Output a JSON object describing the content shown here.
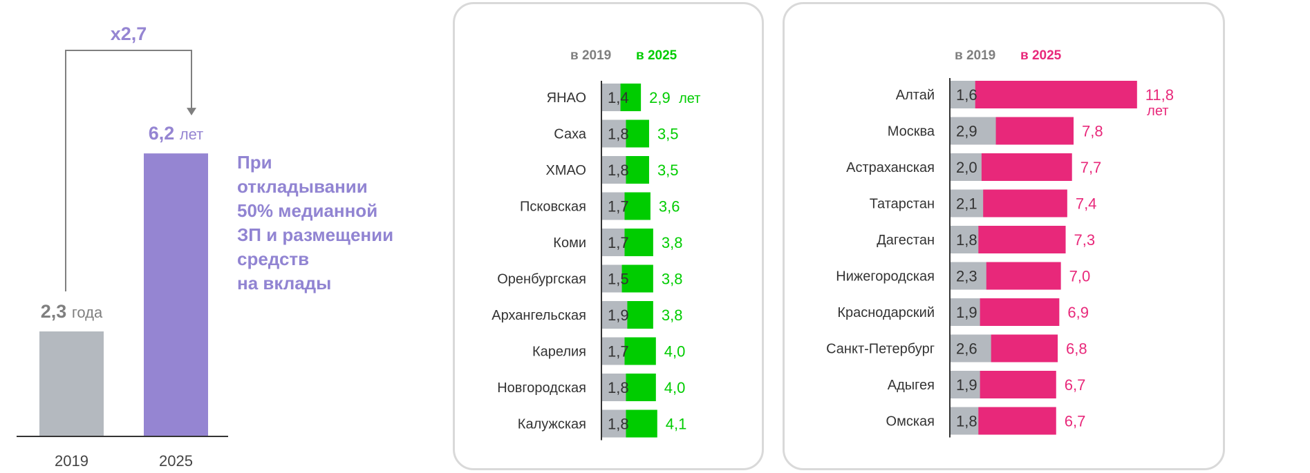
{
  "chart_data": [
    {
      "type": "bar",
      "title": "",
      "categories": [
        "2019",
        "2025"
      ],
      "values": [
        2.3,
        6.2
      ],
      "value_labels": [
        {
          "number": "2,3",
          "unit": "года"
        },
        {
          "number": "6,2",
          "unit": "лет"
        }
      ],
      "multiplier_label": "x2,7",
      "colors": {
        "2019": "#b4b9bf",
        "2025": "#9585d2"
      },
      "note_lines": [
        "При",
        "откладывании",
        "50% медианной",
        "ЗП и размещении",
        "средств",
        "на вклады"
      ]
    },
    {
      "type": "bar",
      "orientation": "horizontal",
      "legend": [
        {
          "label": "в 2019",
          "color": "#7f7f7f"
        },
        {
          "label": "в 2025",
          "color": "#00cc00"
        }
      ],
      "unit_label": "лет",
      "rows": [
        {
          "region": "ЯНАО",
          "v2019": 1.4,
          "v2025": 2.9,
          "l2019": "1,4",
          "l2025": "2,9"
        },
        {
          "region": "Саха",
          "v2019": 1.8,
          "v2025": 3.5,
          "l2019": "1,8",
          "l2025": "3,5"
        },
        {
          "region": "ХМАО",
          "v2019": 1.8,
          "v2025": 3.5,
          "l2019": "1,8",
          "l2025": "3,5"
        },
        {
          "region": "Псковская",
          "v2019": 1.7,
          "v2025": 3.6,
          "l2019": "1,7",
          "l2025": "3,6"
        },
        {
          "region": "Коми",
          "v2019": 1.7,
          "v2025": 3.8,
          "l2019": "1,7",
          "l2025": "3,8"
        },
        {
          "region": "Оренбургская",
          "v2019": 1.5,
          "v2025": 3.8,
          "l2019": "1,5",
          "l2025": "3,8"
        },
        {
          "region": "Архангельская",
          "v2019": 1.9,
          "v2025": 3.8,
          "l2019": "1,9",
          "l2025": "3,8"
        },
        {
          "region": "Карелия",
          "v2019": 1.7,
          "v2025": 4.0,
          "l2019": "1,7",
          "l2025": "4,0"
        },
        {
          "region": "Новгородская",
          "v2019": 1.8,
          "v2025": 4.0,
          "l2019": "1,8",
          "l2025": "4,0"
        },
        {
          "region": "Калужская",
          "v2019": 1.8,
          "v2025": 4.1,
          "l2019": "1,8",
          "l2025": "4,1"
        }
      ]
    },
    {
      "type": "bar",
      "orientation": "horizontal",
      "legend": [
        {
          "label": "в 2019",
          "color": "#7f7f7f"
        },
        {
          "label": "в 2025",
          "color": "#e8287a"
        }
      ],
      "unit_label": "лет",
      "rows": [
        {
          "region": "Алтай",
          "v2019": 1.6,
          "v2025": 11.8,
          "l2019": "1,6",
          "l2025": "11,8"
        },
        {
          "region": "Москва",
          "v2019": 2.9,
          "v2025": 7.8,
          "l2019": "2,9",
          "l2025": "7,8"
        },
        {
          "region": "Астраханская",
          "v2019": 2.0,
          "v2025": 7.7,
          "l2019": "2,0",
          "l2025": "7,7"
        },
        {
          "region": "Татарстан",
          "v2019": 2.1,
          "v2025": 7.4,
          "l2019": "2,1",
          "l2025": "7,4"
        },
        {
          "region": "Дагестан",
          "v2019": 1.8,
          "v2025": 7.3,
          "l2019": "1,8",
          "l2025": "7,3"
        },
        {
          "region": "Нижегородская",
          "v2019": 2.3,
          "v2025": 7.0,
          "l2019": "2,3",
          "l2025": "7,0"
        },
        {
          "region": "Краснодарский",
          "v2019": 1.9,
          "v2025": 6.9,
          "l2019": "1,9",
          "l2025": "6,9"
        },
        {
          "region": "Санкт-Петербург",
          "v2019": 2.6,
          "v2025": 6.8,
          "l2019": "2,6",
          "l2025": "6,8"
        },
        {
          "region": "Адыгея",
          "v2019": 1.9,
          "v2025": 6.7,
          "l2019": "1,9",
          "l2025": "6,7"
        },
        {
          "region": "Омская",
          "v2019": 1.8,
          "v2025": 6.7,
          "l2019": "1,8",
          "l2025": "6,7"
        }
      ]
    }
  ]
}
